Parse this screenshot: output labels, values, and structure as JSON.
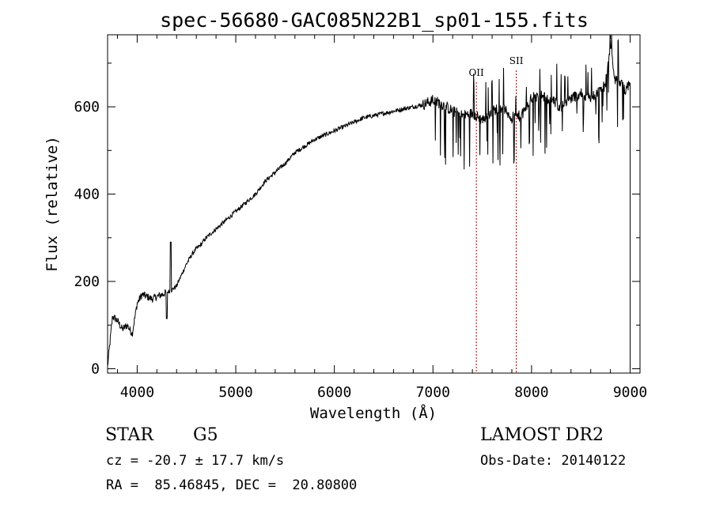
{
  "chart_data": {
    "type": "line",
    "title": "spec-56680-GAC085N22B1_sp01-155.fits",
    "xlabel": "Wavelength (Å)",
    "ylabel": "Flux (relative)",
    "xlim": [
      3700,
      9100
    ],
    "ylim": [
      -10,
      765
    ],
    "xticks": [
      4000,
      5000,
      6000,
      7000,
      8000,
      9000
    ],
    "yticks": [
      0,
      200,
      400,
      600
    ],
    "line_color": "#000000",
    "marker_color": "#aa0000",
    "spectrum_approx": {
      "x": [
        3700,
        3750,
        3800,
        3850,
        3900,
        3950,
        4000,
        4050,
        4100,
        4150,
        4200,
        4250,
        4300,
        4350,
        4400,
        4450,
        4500,
        4550,
        4600,
        4650,
        4700,
        4750,
        4800,
        4850,
        4900,
        4950,
        5000,
        5100,
        5200,
        5300,
        5400,
        5500,
        5600,
        5700,
        5800,
        5900,
        6000,
        6100,
        6200,
        6300,
        6400,
        6500,
        6600,
        6700,
        6800,
        6900,
        7000,
        7100,
        7200,
        7300,
        7400,
        7500,
        7600,
        7700,
        7800,
        7900,
        8000,
        8100,
        8200,
        8300,
        8400,
        8500,
        8600,
        8700,
        8750,
        8800,
        8850,
        8900,
        8950,
        9000
      ],
      "y": [
        5,
        120,
        110,
        90,
        100,
        80,
        150,
        170,
        165,
        160,
        165,
        170,
        175,
        180,
        190,
        215,
        240,
        260,
        275,
        285,
        300,
        310,
        320,
        330,
        340,
        350,
        360,
        380,
        400,
        430,
        450,
        470,
        495,
        510,
        525,
        535,
        545,
        555,
        565,
        575,
        580,
        585,
        590,
        595,
        600,
        605,
        615,
        605,
        590,
        580,
        585,
        570,
        590,
        600,
        575,
        580,
        620,
        625,
        615,
        600,
        620,
        630,
        620,
        640,
        650,
        740,
        660,
        655,
        640,
        650
      ]
    },
    "annotations": [
      {
        "label": "OII",
        "x": 7440
      },
      {
        "label": "SII",
        "x": 7845
      }
    ]
  },
  "info": {
    "object_class": "STAR",
    "subclass": "G5",
    "survey": "LAMOST DR2",
    "redshift_line": "cz = -20.7 ± 17.7 km/s",
    "obs_date": "Obs-Date: 20140122",
    "coords": "RA =  85.46845, DEC =  20.80800"
  }
}
